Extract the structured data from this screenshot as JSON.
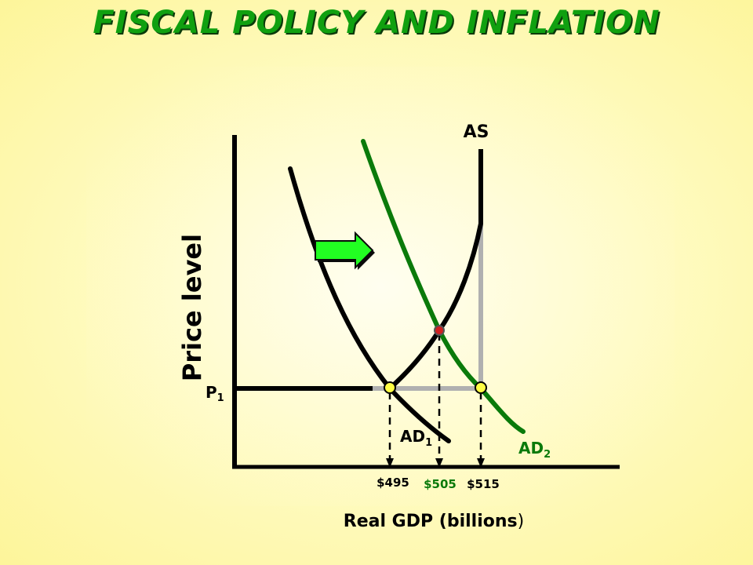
{
  "title": "FISCAL POLICY  AND INFLATION",
  "axes": {
    "y_label": "Price level",
    "x_label": "Real GDP (billions",
    "x_label_close": ")"
  },
  "labels": {
    "as": "AS",
    "p1": "P",
    "p1_sub": "1",
    "ad1": "AD",
    "ad1_sub": "1",
    "ad2": "AD",
    "ad2_sub": "2"
  },
  "gdp_values": [
    "$495",
    "$505",
    "$515"
  ],
  "colors": {
    "green_curve": "#0a7a0a",
    "title_green": "#10a010",
    "arrow": "#22ff22",
    "equilibrium_dot": "#ffff44",
    "new_equilibrium_dot": "#d02020"
  }
}
